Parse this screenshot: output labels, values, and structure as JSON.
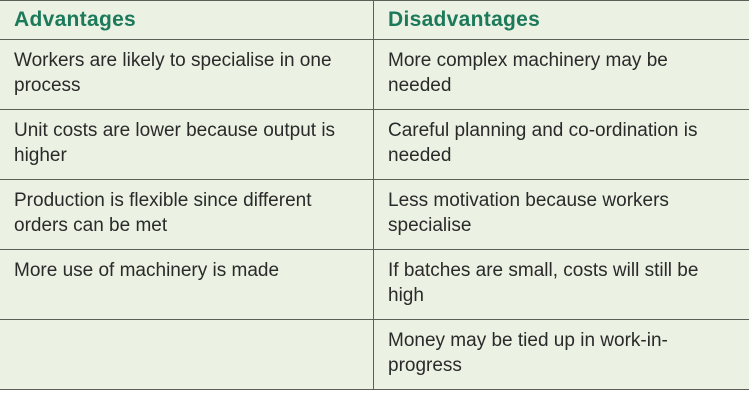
{
  "table": {
    "header": [
      "Advantages",
      "Disadvantages"
    ],
    "rows": [
      [
        "Workers are likely to specialise in one process",
        "More complex machinery may be needed"
      ],
      [
        "Unit costs are lower because output is higher",
        "Careful planning and co-ordination is needed"
      ],
      [
        "Production is flexible since different orders can be met",
        "Less motivation because workers specialise"
      ],
      [
        "More use of machinery is made",
        "If batches are small, costs will still be high"
      ],
      [
        null,
        "Money may be tied up in work-in-progress"
      ]
    ]
  }
}
